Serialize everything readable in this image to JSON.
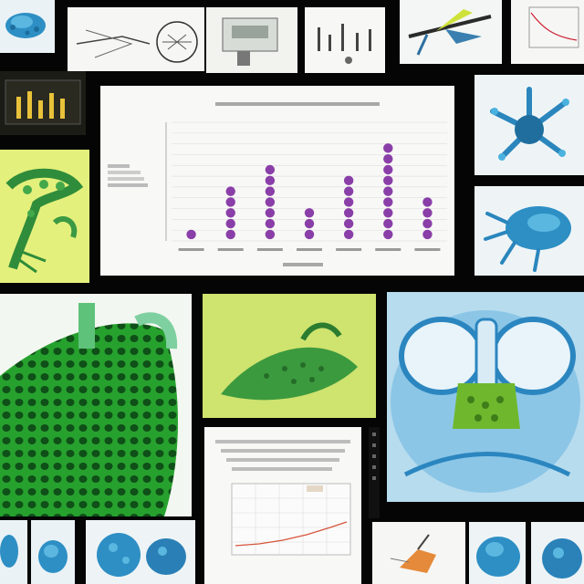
{
  "chart_data": {
    "type": "scatter",
    "style": "stacked-dot columns",
    "title": "",
    "xlabel": "",
    "ylabel": "",
    "categories": [
      "",
      "",
      "",
      "",
      "",
      "",
      ""
    ],
    "values": [
      1,
      5,
      7,
      3,
      6,
      9,
      4
    ],
    "ylim": [
      0,
      11
    ],
    "grid": true,
    "legend": "none",
    "dot_color": "#8a3fa8"
  },
  "colors": {
    "background": "#050505",
    "lime": "#e2ef7a",
    "green": "#3ec43a",
    "teal": "#2d8fc4",
    "purple": "#8a3fa8"
  }
}
